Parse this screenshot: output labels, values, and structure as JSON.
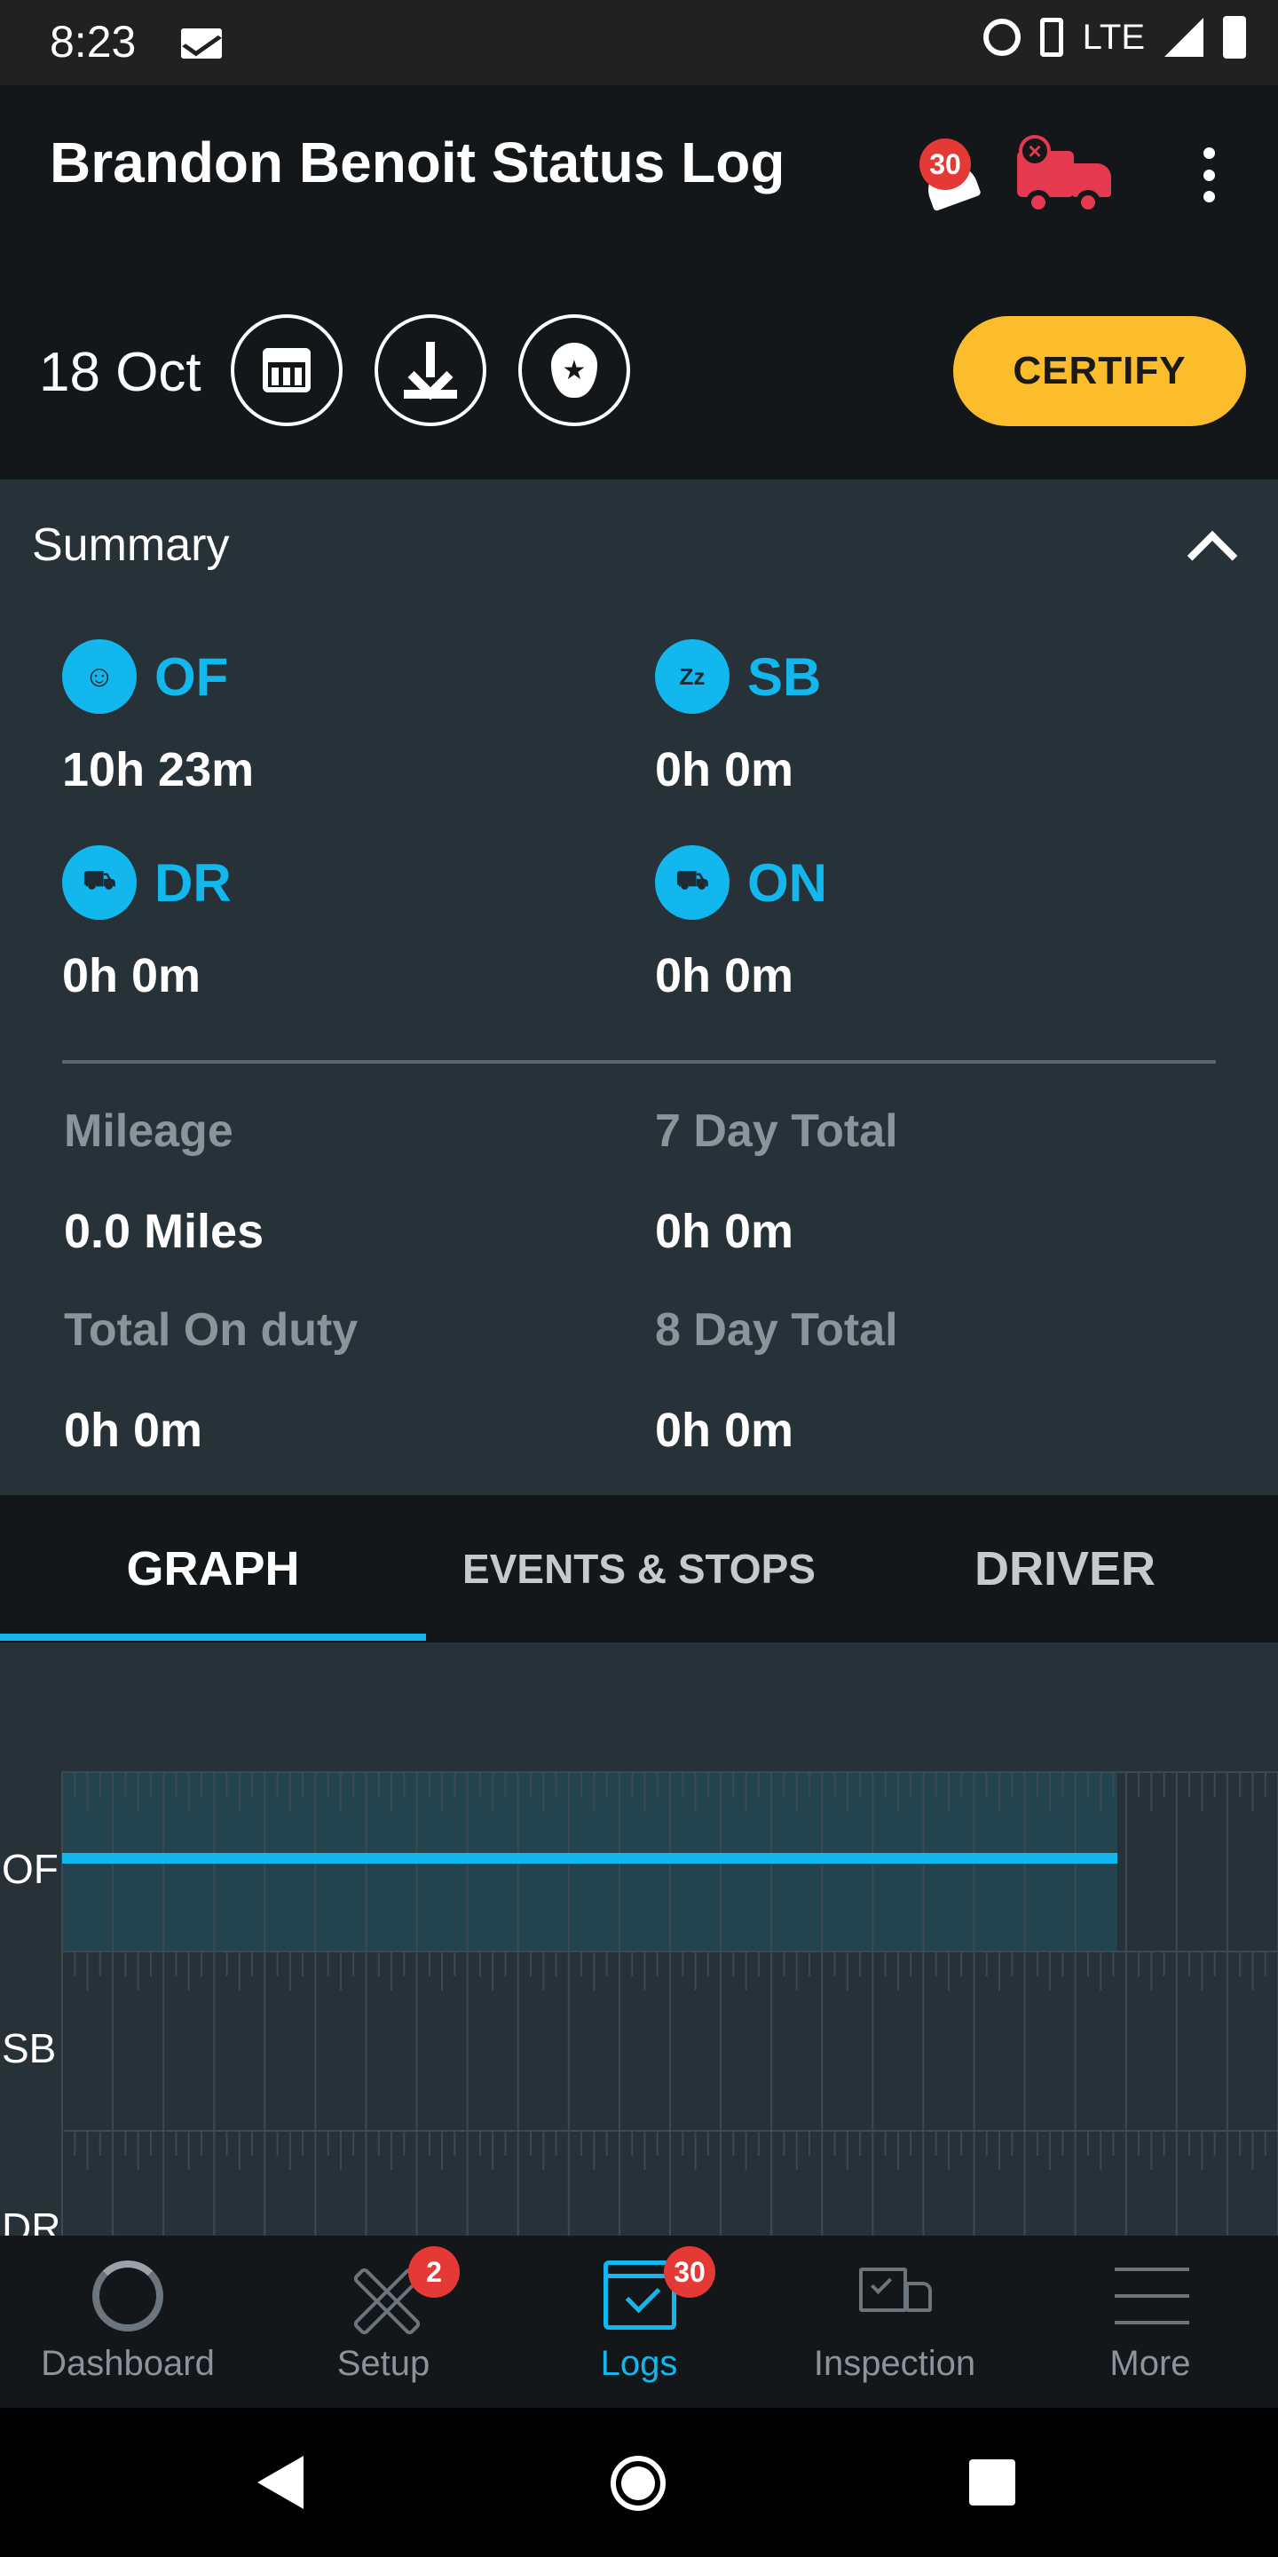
{
  "status_bar": {
    "time": "8:23",
    "network": "LTE",
    "icons": [
      "mail-icon",
      "alarm-icon",
      "vibrate-icon",
      "signal-icon",
      "battery-icon"
    ]
  },
  "app_bar": {
    "title": "Brandon Benoit Status Log",
    "notifications_count": "30",
    "icons": [
      "bell-icon",
      "truck-disconnected-icon",
      "more-vert-icon"
    ]
  },
  "date_row": {
    "date": "18 Oct",
    "certify_label": "CERTIFY",
    "icons": [
      "calendar-icon",
      "download-icon",
      "police-badge-icon"
    ]
  },
  "summary": {
    "title": "Summary",
    "statuses": [
      {
        "code": "OF",
        "value": "10h 23m",
        "icon": "smiley-icon"
      },
      {
        "code": "SB",
        "value": "0h 0m",
        "icon": "sleep-icon"
      },
      {
        "code": "DR",
        "value": "0h 0m",
        "icon": "moving-truck-icon"
      },
      {
        "code": "ON",
        "value": "0h 0m",
        "icon": "truck-icon"
      }
    ],
    "stats": [
      {
        "label": "Mileage",
        "value": "0.0 Miles"
      },
      {
        "label": "7 Day Total",
        "value": "0h 0m"
      },
      {
        "label": "Total On duty",
        "value": "0h 0m"
      },
      {
        "label": "8 Day Total",
        "value": "0h 0m"
      }
    ]
  },
  "tabs": {
    "items": [
      "GRAPH",
      "EVENTS & STOPS",
      "DRIVER"
    ],
    "active": "GRAPH"
  },
  "graph": {
    "rows": [
      "OF",
      "SB",
      "DR"
    ],
    "colors": {
      "line": "#12b8ed",
      "active_band": "#23444f"
    },
    "off_duty_hours": 10.38,
    "elapsed_hours": 20.83
  },
  "bottom_nav": {
    "items": [
      {
        "label": "Dashboard",
        "icon": "dashboard-ring-icon",
        "badge": ""
      },
      {
        "label": "Setup",
        "icon": "tools-icon",
        "badge": "2"
      },
      {
        "label": "Logs",
        "icon": "logs-calendar-icon",
        "badge": "30"
      },
      {
        "label": "Inspection",
        "icon": "inspection-truck-icon",
        "badge": ""
      },
      {
        "label": "More",
        "icon": "menu-icon",
        "badge": ""
      }
    ],
    "active": "Logs"
  },
  "colors": {
    "accent": "#12b8ed",
    "certify": "#fbbd2b",
    "badge": "#e53935",
    "alert_truck": "#e53950"
  }
}
